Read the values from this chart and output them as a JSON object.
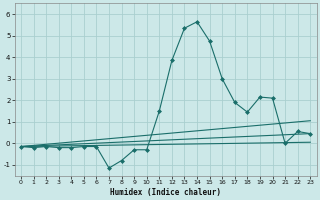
{
  "title": "",
  "xlabel": "Humidex (Indice chaleur)",
  "bg_color": "#cce8e8",
  "grid_color": "#aacfcf",
  "line_color": "#1a6e6a",
  "xlim": [
    -0.5,
    23.5
  ],
  "ylim": [
    -1.5,
    6.5
  ],
  "yticks": [
    -1,
    0,
    1,
    2,
    3,
    4,
    5,
    6
  ],
  "xticks": [
    0,
    1,
    2,
    3,
    4,
    5,
    6,
    7,
    8,
    9,
    10,
    11,
    12,
    13,
    14,
    15,
    16,
    17,
    18,
    19,
    20,
    21,
    22,
    23
  ],
  "series": [
    {
      "x": [
        0,
        1,
        2,
        3,
        4,
        5,
        6,
        7,
        8,
        9,
        10,
        11,
        12,
        13,
        14,
        15,
        16,
        17,
        18,
        19,
        20,
        21,
        22,
        23
      ],
      "y": [
        -0.15,
        -0.2,
        -0.15,
        -0.2,
        -0.2,
        -0.15,
        -0.15,
        -1.15,
        -0.8,
        -0.3,
        -0.3,
        1.5,
        3.85,
        5.35,
        5.65,
        4.75,
        3.0,
        1.9,
        1.45,
        2.15,
        2.1,
        0.0,
        0.55,
        0.45
      ],
      "marker": "D",
      "markersize": 2.0,
      "linewidth": 0.8
    },
    {
      "x": [
        0,
        23
      ],
      "y": [
        -0.15,
        1.05
      ],
      "linewidth": 0.8
    },
    {
      "x": [
        0,
        23
      ],
      "y": [
        -0.15,
        0.45
      ],
      "linewidth": 0.8
    },
    {
      "x": [
        0,
        23
      ],
      "y": [
        -0.15,
        0.05
      ],
      "linewidth": 0.8
    }
  ]
}
